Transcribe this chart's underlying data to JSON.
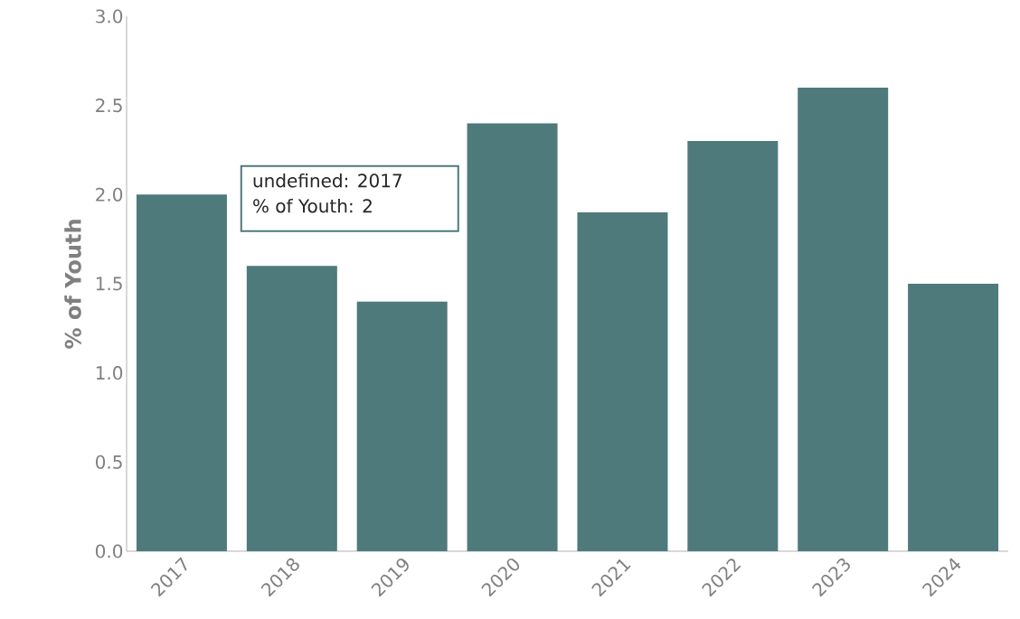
{
  "chart_data": {
    "type": "bar",
    "ylabel": "% of Youth",
    "categories": [
      "2017",
      "2018",
      "2019",
      "2020",
      "2021",
      "2022",
      "2023",
      "2024"
    ],
    "values": [
      2.0,
      1.6,
      1.4,
      2.4,
      1.9,
      2.3,
      2.6,
      1.5
    ],
    "color": "#4f7a7b",
    "ylim": [
      0,
      3
    ],
    "yticks": [
      {
        "value": 0,
        "label": "0.0"
      },
      {
        "value": 0.5,
        "label": "0.5"
      },
      {
        "value": 1,
        "label": "1.0"
      },
      {
        "value": 1.5,
        "label": "1.5"
      },
      {
        "value": 2,
        "label": "2.0"
      },
      {
        "value": 2.5,
        "label": "2.5"
      },
      {
        "value": 3,
        "label": "3.0"
      }
    ],
    "grid": false,
    "annotations": [
      "undefined: 2017",
      "% of Youth: 2"
    ]
  }
}
